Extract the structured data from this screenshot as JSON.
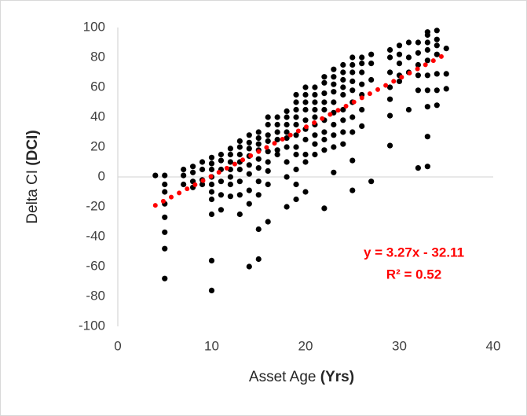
{
  "chart_data": {
    "type": "scatter",
    "xlabel": {
      "text": "Asset Age",
      "bold": "(Yrs)"
    },
    "ylabel": {
      "text": "Delta CI",
      "bold": "(DCI)"
    },
    "color": "#000000",
    "x": [
      4,
      5,
      5,
      5,
      5,
      5,
      5,
      5,
      5,
      7,
      7,
      7,
      8,
      8,
      8,
      8,
      9,
      9,
      9,
      9,
      10,
      10,
      10,
      10,
      10,
      10,
      10,
      10,
      10,
      10,
      11,
      11,
      11,
      11,
      11,
      11,
      12,
      12,
      12,
      12,
      12,
      12,
      12,
      13,
      13,
      13,
      13,
      13,
      13,
      13,
      13,
      14,
      14,
      14,
      14,
      14,
      14,
      14,
      14,
      14,
      15,
      15,
      15,
      15,
      15,
      15,
      15,
      15,
      15,
      15,
      16,
      16,
      16,
      16,
      16,
      16,
      16,
      16,
      16,
      17,
      17,
      17,
      17,
      17,
      17,
      18,
      18,
      18,
      18,
      18,
      18,
      18,
      18,
      18,
      19,
      19,
      19,
      19,
      19,
      19,
      19,
      19,
      19,
      19,
      19,
      20,
      20,
      20,
      20,
      20,
      20,
      20,
      20,
      20,
      20,
      21,
      21,
      21,
      21,
      21,
      21,
      21,
      21,
      21,
      22,
      22,
      22,
      22,
      22,
      22,
      22,
      22,
      22,
      22,
      23,
      23,
      23,
      23,
      23,
      23,
      23,
      23,
      23,
      23,
      24,
      24,
      24,
      24,
      24,
      24,
      24,
      24,
      24,
      25,
      25,
      25,
      25,
      25,
      25,
      25,
      25,
      25,
      25,
      26,
      26,
      26,
      26,
      26,
      26,
      26,
      27,
      27,
      27,
      27,
      29,
      29,
      29,
      29,
      29,
      29,
      29,
      30,
      30,
      30,
      30,
      30,
      31,
      31,
      31,
      31,
      32,
      32,
      32,
      32,
      32,
      32,
      33,
      33,
      33,
      33,
      33,
      33,
      33,
      33,
      33,
      33,
      34,
      34,
      34,
      34,
      34,
      34,
      34,
      35,
      35,
      35
    ],
    "values": [
      1,
      1,
      -5,
      -10,
      -18,
      -27,
      -37,
      -48,
      -68,
      5,
      1,
      -5,
      7,
      3,
      -3,
      -7,
      10,
      5,
      -2,
      -5,
      13,
      9,
      5,
      0,
      -5,
      -10,
      -15,
      -25,
      -56,
      -76,
      15,
      11,
      5,
      -3,
      -12,
      -22,
      19,
      15,
      10,
      5,
      0,
      -5,
      -13,
      24,
      20,
      15,
      10,
      5,
      -3,
      -12,
      -25,
      28,
      23,
      19,
      14,
      8,
      2,
      -9,
      -18,
      -60,
      30,
      26,
      22,
      18,
      12,
      6,
      -3,
      -12,
      -35,
      -55,
      40,
      35,
      28,
      24,
      17,
      10,
      4,
      -5,
      -30,
      40,
      35,
      30,
      25,
      18,
      15,
      44,
      40,
      35,
      30,
      26,
      20,
      10,
      0,
      -20,
      55,
      50,
      45,
      40,
      35,
      28,
      20,
      15,
      5,
      -5,
      -15,
      60,
      55,
      50,
      45,
      38,
      32,
      25,
      15,
      10,
      -10,
      60,
      55,
      50,
      45,
      40,
      35,
      28,
      22,
      15,
      67,
      63,
      56,
      50,
      45,
      38,
      30,
      25,
      18,
      -21,
      72,
      67,
      62,
      57,
      50,
      43,
      35,
      28,
      20,
      3,
      75,
      70,
      65,
      60,
      55,
      45,
      38,
      30,
      22,
      80,
      75,
      70,
      64,
      58,
      50,
      40,
      30,
      11,
      -9,
      80,
      76,
      70,
      62,
      55,
      45,
      34,
      82,
      76,
      65,
      -3,
      85,
      80,
      70,
      60,
      52,
      41,
      21,
      88,
      82,
      76,
      68,
      64,
      90,
      80,
      70,
      45,
      90,
      83,
      75,
      68,
      58,
      6,
      97,
      95,
      90,
      85,
      78,
      68,
      58,
      47,
      27,
      7,
      98,
      92,
      88,
      82,
      69,
      58,
      48,
      86,
      69,
      59
    ],
    "trendline": {
      "slope": 3.27,
      "intercept": -32.11,
      "x_range": [
        4,
        35
      ],
      "color": "#ff0000"
    },
    "annotations": [
      "y = 3.27x - 32.11",
      "R² = 0.52"
    ],
    "xlim": [
      0,
      40
    ],
    "xticks": [
      0,
      10,
      20,
      30,
      40
    ],
    "ylim": [
      -100,
      100
    ],
    "yticks": [
      -100,
      -80,
      -60,
      -40,
      -20,
      0,
      20,
      40,
      60,
      80,
      100
    ],
    "grid": false
  }
}
